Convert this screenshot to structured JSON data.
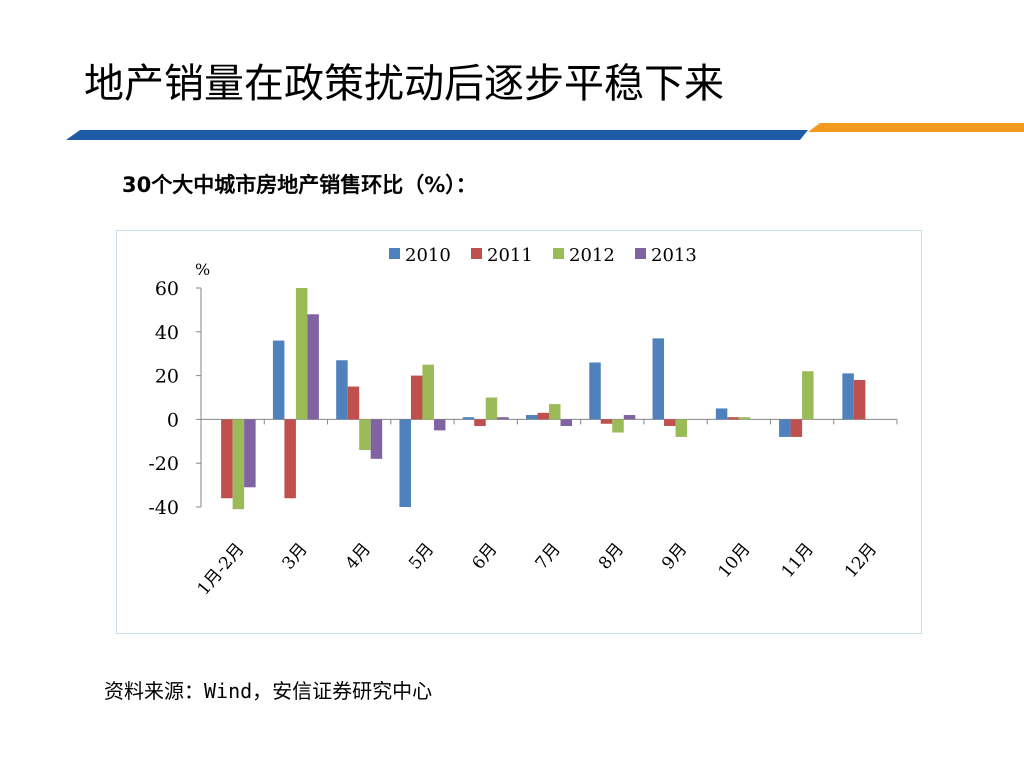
{
  "slide": {
    "title": "地产销量在政策扰动后逐步平稳下来",
    "source": "资料来源：Wind，安信证券研究中心"
  },
  "colors": {
    "rule_blue": "#1f5aa6",
    "rule_orange": "#f39a1e"
  },
  "chart_data": {
    "type": "bar",
    "title": "30个大中城市房地产销售环比（%）：",
    "ylabel": "%",
    "xlabel": "",
    "ylim": [
      -40,
      60
    ],
    "yticks": [
      60,
      40,
      20,
      0,
      -20,
      -40
    ],
    "ytick_labels": [
      "60",
      "40",
      "20",
      "0",
      "-20",
      "-40"
    ],
    "grid": false,
    "legend_position": "top",
    "categories": [
      "1月-2月",
      "3月",
      "4月",
      "5月",
      "6月",
      "7月",
      "8月",
      "9月",
      "10月",
      "11月",
      "12月"
    ],
    "series": [
      {
        "name": "2010",
        "color": "#4f81bd",
        "values": [
          null,
          36,
          27,
          -40,
          1,
          2,
          26,
          37,
          5,
          -8,
          21
        ]
      },
      {
        "name": "2011",
        "color": "#c0504d",
        "values": [
          -36,
          -36,
          15,
          20,
          -3,
          3,
          -2,
          -3,
          1,
          -8,
          18
        ]
      },
      {
        "name": "2012",
        "color": "#9bbb59",
        "values": [
          -41,
          60,
          -14,
          25,
          10,
          7,
          -6,
          -8,
          1,
          22,
          null
        ]
      },
      {
        "name": "2013",
        "color": "#8064a2",
        "values": [
          -31,
          48,
          -18,
          -5,
          1,
          -3,
          2,
          null,
          null,
          null,
          null
        ]
      }
    ]
  }
}
